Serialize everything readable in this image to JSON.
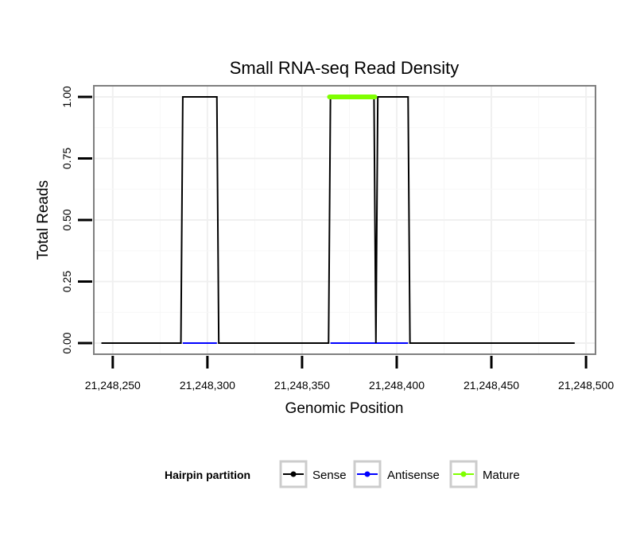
{
  "chart_data": {
    "type": "line",
    "title": "Small RNA-seq Read Density",
    "xlabel": "Genomic Position",
    "ylabel": "Total Reads",
    "xlim": [
      21248240,
      21248505
    ],
    "ylim": [
      -0.045,
      1.045
    ],
    "x_ticks": [
      21248250,
      21248300,
      21248350,
      21248400,
      21248450,
      21248500
    ],
    "x_tick_labels": [
      "21,248,250",
      "21,248,300",
      "21,248,350",
      "21,248,400",
      "21,248,450",
      "21,248,500"
    ],
    "y_ticks": [
      0,
      0.25,
      0.5,
      0.75,
      1
    ],
    "y_tick_labels": [
      "0.00",
      "0.25",
      "0.50",
      "0.75",
      "1.00"
    ],
    "grid": true,
    "legend": {
      "title": "Hairpin partition",
      "position": "bottom",
      "entries": [
        "Sense",
        "Antisense",
        "Mature"
      ]
    },
    "series": [
      {
        "name": "Sense",
        "color": "#000000",
        "x": [
          21248244,
          21248286,
          21248287,
          21248305,
          21248306,
          21248364,
          21248365,
          21248388,
          21248389,
          21248390,
          21248406,
          21248407,
          21248494
        ],
        "values": [
          0,
          0,
          1,
          1,
          0,
          0,
          1,
          1,
          0,
          1,
          1,
          0,
          0
        ]
      },
      {
        "name": "Antisense",
        "color": "#0000ff",
        "x": [
          21248287,
          21248305,
          21248365,
          21248406
        ],
        "values": [
          0,
          0,
          0,
          0
        ]
      },
      {
        "name": "Mature",
        "color": "#7fff00",
        "x": [
          21248364.5,
          21248388.5
        ],
        "values": [
          1,
          1
        ]
      }
    ]
  }
}
